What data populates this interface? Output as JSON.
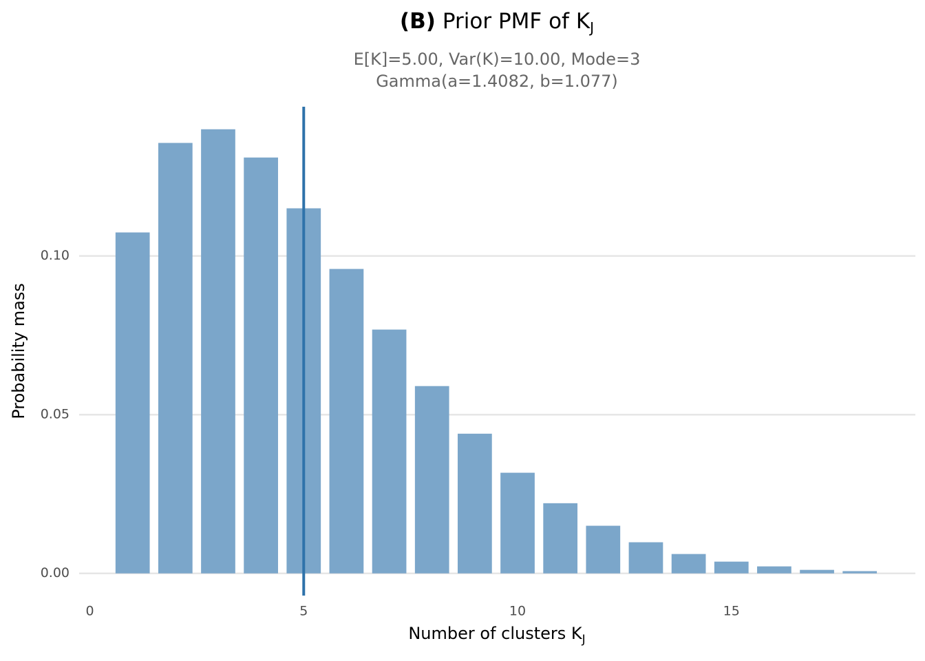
{
  "chart_data": {
    "type": "bar",
    "title_tag": "(B)",
    "title": "Prior PMF of K",
    "title_subscript": "J",
    "subtitle": [
      "E[K]=5.00,  Var(K)=10.00,  Mode=3",
      "Gamma(a=1.4082, b=1.077)"
    ],
    "x_label": "Number of clusters K",
    "x_label_subscript": "J",
    "y_label": "Probability mass",
    "x": [
      1,
      2,
      3,
      4,
      5,
      6,
      7,
      8,
      9,
      10,
      11,
      12,
      13,
      14,
      15,
      16,
      17,
      18
    ],
    "values": [
      0.1074,
      0.1356,
      0.1399,
      0.131,
      0.115,
      0.0959,
      0.0768,
      0.059,
      0.044,
      0.0317,
      0.0221,
      0.015,
      0.0098,
      0.0061,
      0.0037,
      0.0022,
      0.0011,
      0.0007
    ],
    "color": "#7ba6ca",
    "vline": 5,
    "vline_color": "#2e72aa",
    "xlim": [
      -0.25,
      19.3
    ],
    "xticks": [
      0,
      5,
      10,
      15
    ],
    "ylim": [
      -0.007,
      0.147
    ],
    "yticks": [
      {
        "value": 0,
        "label": "0.00"
      },
      {
        "value": 0.05,
        "label": "0.05"
      },
      {
        "value": 0.1,
        "label": "0.10"
      }
    ],
    "grid": true
  }
}
